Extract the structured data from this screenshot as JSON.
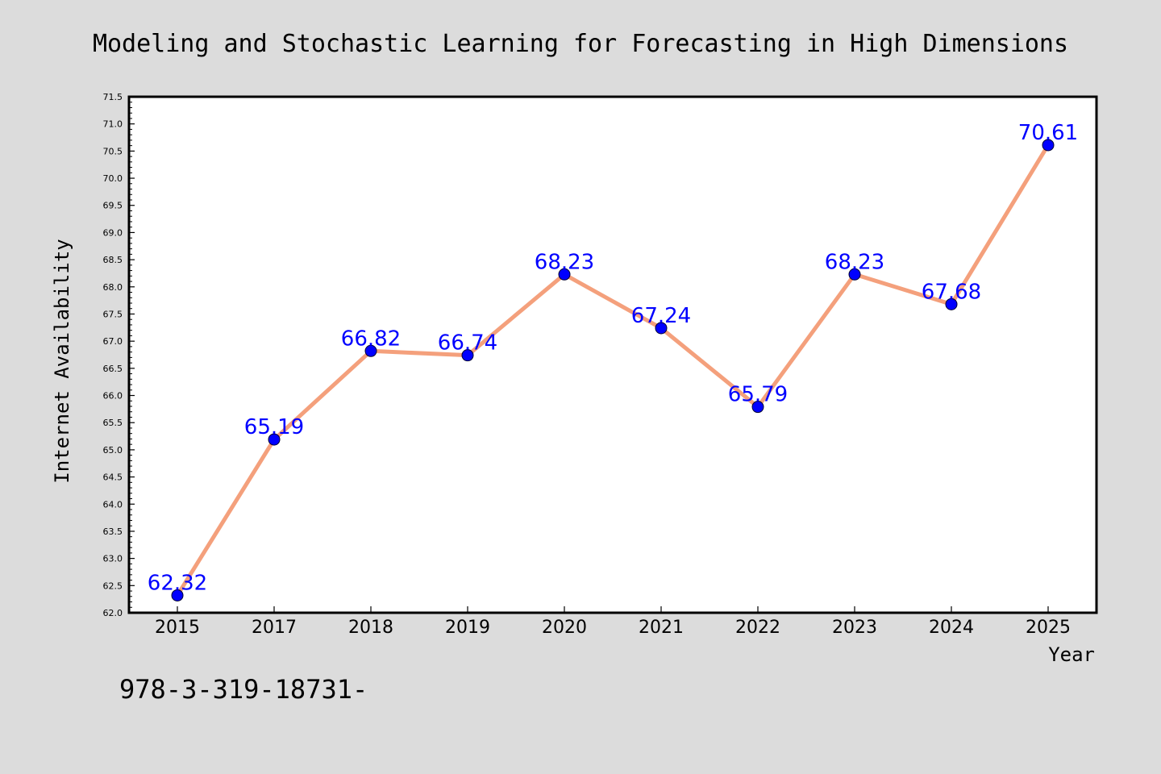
{
  "chart_data": {
    "type": "line",
    "title": "Modeling and Stochastic Learning for Forecasting in High Dimensions",
    "xlabel": "Year",
    "ylabel": "Internet Availability",
    "categories": [
      "2015",
      "2017",
      "2018",
      "2019",
      "2020",
      "2021",
      "2022",
      "2023",
      "2024",
      "2025"
    ],
    "values": [
      62.32,
      65.19,
      66.82,
      66.74,
      68.23,
      67.24,
      65.79,
      68.23,
      67.68,
      70.61
    ],
    "data_labels": [
      "62.32",
      "65.19",
      "66.82",
      "66.74",
      "68.23",
      "67.24",
      "65.79",
      "68.23",
      "67.68",
      "70.61"
    ],
    "ylim": [
      62.0,
      71.5
    ],
    "yticks": [
      "62.0",
      "62.5",
      "63.0",
      "63.5",
      "64.0",
      "64.5",
      "65.0",
      "65.5",
      "66.0",
      "66.5",
      "67.0",
      "67.5",
      "68.0",
      "68.5",
      "69.0",
      "69.5",
      "70.0",
      "70.5",
      "71.0",
      "71.5"
    ],
    "grid": false,
    "line_color": "#f4a07c",
    "marker_color": "#0000ff",
    "label_color": "#0000ff",
    "background_color": "#dcdcdc",
    "plot_background_color": "#ffffff"
  },
  "footnote": "978-3-319-18731-"
}
